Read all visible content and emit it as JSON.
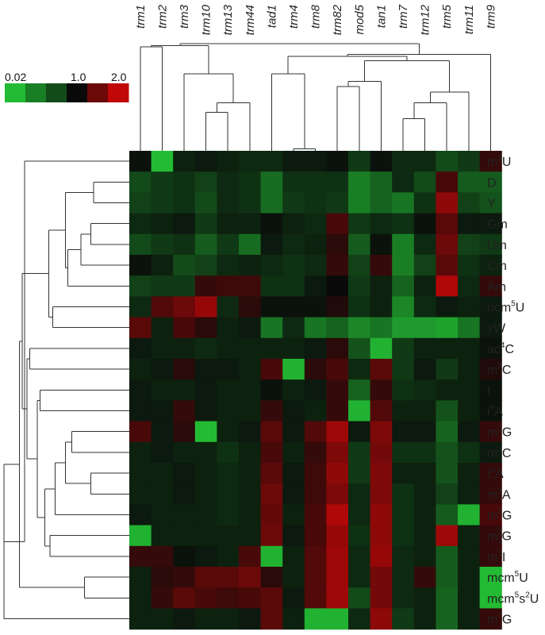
{
  "chart_data": {
    "type": "heatmap",
    "title": "",
    "xlabel": "",
    "ylabel": "",
    "columns": [
      "trm1",
      "trm2",
      "trm3",
      "trm10",
      "trm13",
      "trm44",
      "tad1",
      "trm4",
      "trm8",
      "trm82",
      "mod5",
      "tan1",
      "trm7",
      "trm12",
      "trm5",
      "trm11",
      "trm9"
    ],
    "rows": [
      {
        "label": "m5U",
        "base": "m",
        "sup": "5",
        "sub": "",
        "rest": "U"
      },
      {
        "label": "D",
        "base": "D",
        "sup": "",
        "sub": "",
        "rest": ""
      },
      {
        "label": "Y",
        "base": "Y",
        "sup": "",
        "sub": "",
        "rest": ""
      },
      {
        "label": "Gm",
        "base": "Gm",
        "sup": "",
        "sub": "",
        "rest": ""
      },
      {
        "label": "Um",
        "base": "Um",
        "sup": "",
        "sub": "",
        "rest": ""
      },
      {
        "label": "Cm",
        "base": "Cm",
        "sup": "",
        "sub": "",
        "rest": ""
      },
      {
        "label": "Am",
        "base": "Am",
        "sup": "",
        "sub": "",
        "rest": ""
      },
      {
        "label": "ncm5U",
        "base": "ncm",
        "sup": "5",
        "sub": "",
        "rest": "U"
      },
      {
        "label": "yW",
        "base": "yW",
        "sup": "",
        "sub": "",
        "rest": ""
      },
      {
        "label": "ac4C",
        "base": "ac",
        "sup": "4",
        "sub": "",
        "rest": "C"
      },
      {
        "label": "m5C",
        "base": "m",
        "sup": "5",
        "sub": "",
        "rest": "C"
      },
      {
        "label": "I",
        "base": "I",
        "sup": "",
        "sub": "",
        "rest": ""
      },
      {
        "label": "i6A",
        "base": "i",
        "sup": "6",
        "sub": "",
        "rest": "A"
      },
      {
        "label": "m1G",
        "base": "m",
        "sup": "1",
        "sub": "",
        "rest": "G"
      },
      {
        "label": "m3C",
        "base": "m",
        "sup": "3",
        "sub": "",
        "rest": "C"
      },
      {
        "label": "t6A",
        "base": "t",
        "sup": "6",
        "sub": "",
        "rest": "A"
      },
      {
        "label": "m1A",
        "base": "m",
        "sup": "1",
        "sub": "",
        "rest": "A"
      },
      {
        "label": "m2G",
        "base": "m",
        "sup": "2",
        "sub": "",
        "rest": "G"
      },
      {
        "label": "m22G",
        "base": "m",
        "sup": "2",
        "sub": "2",
        "rest": "G"
      },
      {
        "label": "m1I",
        "base": "m",
        "sup": "1",
        "sub": "",
        "rest": "I"
      },
      {
        "label": "mcm5U",
        "base": "mcm",
        "sup": "5",
        "sub": "",
        "rest": "U"
      },
      {
        "label": "mcm5s2U",
        "base": "mcm",
        "sup": "5",
        "sub": "",
        "rest": "s",
        "sup2": "2",
        "rest2": "U"
      },
      {
        "label": "m7G",
        "base": "m",
        "sup": "7",
        "sub": "",
        "rest": "G"
      }
    ],
    "values": [
      [
        0.95,
        0.02,
        0.85,
        0.9,
        0.85,
        0.8,
        0.8,
        0.9,
        0.9,
        0.95,
        0.7,
        0.95,
        0.8,
        0.8,
        0.6,
        0.7,
        1.2
      ],
      [
        0.6,
        0.7,
        0.75,
        0.65,
        0.8,
        0.75,
        0.4,
        0.75,
        0.75,
        0.75,
        0.3,
        0.45,
        0.8,
        0.6,
        1.3,
        0.5,
        0.5
      ],
      [
        0.65,
        0.7,
        0.75,
        0.6,
        0.8,
        0.75,
        0.4,
        0.7,
        0.75,
        0.7,
        0.3,
        0.45,
        0.35,
        0.75,
        1.7,
        0.65,
        0.55
      ],
      [
        0.8,
        0.85,
        0.9,
        0.7,
        0.85,
        0.85,
        0.95,
        0.85,
        0.8,
        1.3,
        0.7,
        0.8,
        0.75,
        0.95,
        1.4,
        0.9,
        0.9
      ],
      [
        0.6,
        0.7,
        0.75,
        0.5,
        0.7,
        0.4,
        0.9,
        0.8,
        0.85,
        1.15,
        0.5,
        0.95,
        0.3,
        0.8,
        1.5,
        0.65,
        0.7
      ],
      [
        0.95,
        0.85,
        0.6,
        0.65,
        0.8,
        0.85,
        0.8,
        0.75,
        0.8,
        1.2,
        0.65,
        1.2,
        0.3,
        0.65,
        1.4,
        0.75,
        0.85
      ],
      [
        0.65,
        0.7,
        0.7,
        1.2,
        1.25,
        1.25,
        0.75,
        0.75,
        0.9,
        1.0,
        0.7,
        0.85,
        0.45,
        0.85,
        1.9,
        0.8,
        1.2
      ],
      [
        0.8,
        1.35,
        1.5,
        1.75,
        0.8,
        1.15,
        0.95,
        0.95,
        0.95,
        1.1,
        0.75,
        0.85,
        0.25,
        0.8,
        0.9,
        0.85,
        0.9
      ],
      [
        1.4,
        0.85,
        1.3,
        1.15,
        0.85,
        0.9,
        0.35,
        0.8,
        0.35,
        0.45,
        0.25,
        0.35,
        0.15,
        0.15,
        0.12,
        0.35,
        0.9
      ],
      [
        0.9,
        0.85,
        0.85,
        0.8,
        0.85,
        0.85,
        0.85,
        0.85,
        0.9,
        1.15,
        0.55,
        0.05,
        0.7,
        0.85,
        0.85,
        0.85,
        0.95
      ],
      [
        0.85,
        0.9,
        1.15,
        0.9,
        0.9,
        0.85,
        1.3,
        0.05,
        1.15,
        1.3,
        0.8,
        1.4,
        0.7,
        0.9,
        0.7,
        0.85,
        1.1
      ],
      [
        0.9,
        0.85,
        0.85,
        0.9,
        0.85,
        0.85,
        0.95,
        0.85,
        0.9,
        1.2,
        0.45,
        1.2,
        0.75,
        0.8,
        0.85,
        0.85,
        0.95
      ],
      [
        0.9,
        0.9,
        1.2,
        0.9,
        0.85,
        0.85,
        1.2,
        0.9,
        0.85,
        1.2,
        0.05,
        1.35,
        0.85,
        0.85,
        0.55,
        0.85,
        0.95
      ],
      [
        1.3,
        0.9,
        1.15,
        0.02,
        0.85,
        0.9,
        1.4,
        0.9,
        1.35,
        1.8,
        0.9,
        1.6,
        0.9,
        0.9,
        0.45,
        0.9,
        1.2
      ],
      [
        0.85,
        0.9,
        0.85,
        0.85,
        0.75,
        0.85,
        1.3,
        0.85,
        1.2,
        1.6,
        0.7,
        1.55,
        0.75,
        0.75,
        0.55,
        0.75,
        0.9
      ],
      [
        0.85,
        0.85,
        0.9,
        0.85,
        0.8,
        0.85,
        1.4,
        0.9,
        1.25,
        1.7,
        0.7,
        1.6,
        0.85,
        0.85,
        0.55,
        0.85,
        1.2
      ],
      [
        0.85,
        0.85,
        0.9,
        0.85,
        0.8,
        0.85,
        1.5,
        0.9,
        1.25,
        1.6,
        0.8,
        1.6,
        0.75,
        0.85,
        0.65,
        0.85,
        1.2
      ],
      [
        0.9,
        0.85,
        0.85,
        0.85,
        0.8,
        0.85,
        1.45,
        0.85,
        1.3,
        1.9,
        0.8,
        1.7,
        0.75,
        0.85,
        0.5,
        0.05,
        1.3
      ],
      [
        0.05,
        0.85,
        0.85,
        0.85,
        0.85,
        0.85,
        1.5,
        0.9,
        1.3,
        1.75,
        0.75,
        1.7,
        0.75,
        0.85,
        1.8,
        0.85,
        1.2
      ],
      [
        1.2,
        1.2,
        0.95,
        0.9,
        0.85,
        1.3,
        0.05,
        0.85,
        1.35,
        1.8,
        0.8,
        1.75,
        0.8,
        0.85,
        0.5,
        0.85,
        1.2
      ],
      [
        0.85,
        1.15,
        1.2,
        1.4,
        1.4,
        1.5,
        1.15,
        0.85,
        1.35,
        1.8,
        0.8,
        1.55,
        0.8,
        1.2,
        0.5,
        0.85,
        0.02
      ],
      [
        0.85,
        1.2,
        1.4,
        1.3,
        1.25,
        1.3,
        1.4,
        0.9,
        1.35,
        1.8,
        0.6,
        1.55,
        0.8,
        0.85,
        0.45,
        0.85,
        0.02
      ],
      [
        0.85,
        0.85,
        0.9,
        0.85,
        0.85,
        0.9,
        1.4,
        0.85,
        0.05,
        0.05,
        0.8,
        1.7,
        0.7,
        0.85,
        0.45,
        0.85,
        1.2
      ]
    ],
    "legend": {
      "ticks": [
        "0.02",
        "1.0",
        "2.0"
      ],
      "tick_values": [
        0.02,
        1.0,
        2.0
      ],
      "swatches": [
        0.02,
        0.3,
        0.6,
        1.0,
        1.5,
        2.0
      ],
      "placement": "top-left"
    },
    "scale": {
      "min": 0.02,
      "mid": 1.0,
      "max": 2.0
    },
    "colors": {
      "low": "#22bb33",
      "mid": "#0a0a0a",
      "high": "#c00808"
    },
    "col_dendrogram": {
      "order": [
        "trm1",
        "trm2",
        "trm3",
        "trm10",
        "trm13",
        "trm44",
        "tad1",
        "trm4",
        "trm8",
        "trm82",
        "mod5",
        "tan1",
        "trm7",
        "trm12",
        "trm5",
        "trm11",
        "trm9"
      ],
      "merges": [
        {
          "a": 7,
          "b": 8,
          "h": 0.1
        },
        {
          "a": 12,
          "b": 13,
          "h": 0.3
        },
        {
          "a": 3,
          "b": 4,
          "h": 0.36
        },
        {
          "a": 4,
          "b": 5,
          "h": 0.45
        },
        {
          "a": 13,
          "b": 14,
          "h": 0.45
        },
        {
          "a": 12,
          "b": 15,
          "h": 0.55
        },
        {
          "a": 9,
          "b": 10,
          "h": 0.6
        },
        {
          "a": 10,
          "b": 11,
          "h": 0.65
        },
        {
          "a": 2,
          "b": 3,
          "h": 0.72
        },
        {
          "a": 6,
          "b": 8,
          "h": 0.7
        },
        {
          "a": 11,
          "b": 12,
          "h": 0.82
        },
        {
          "a": 6,
          "b": 9,
          "h": 0.85
        },
        {
          "a": 0,
          "b": 2,
          "h": 0.95
        },
        {
          "a": 6,
          "b": 11,
          "h": 0.88
        },
        {
          "a": 16,
          "b": 16,
          "h": 0.8
        },
        {
          "a": 0,
          "b": 6,
          "h": 1.0
        }
      ]
    }
  }
}
